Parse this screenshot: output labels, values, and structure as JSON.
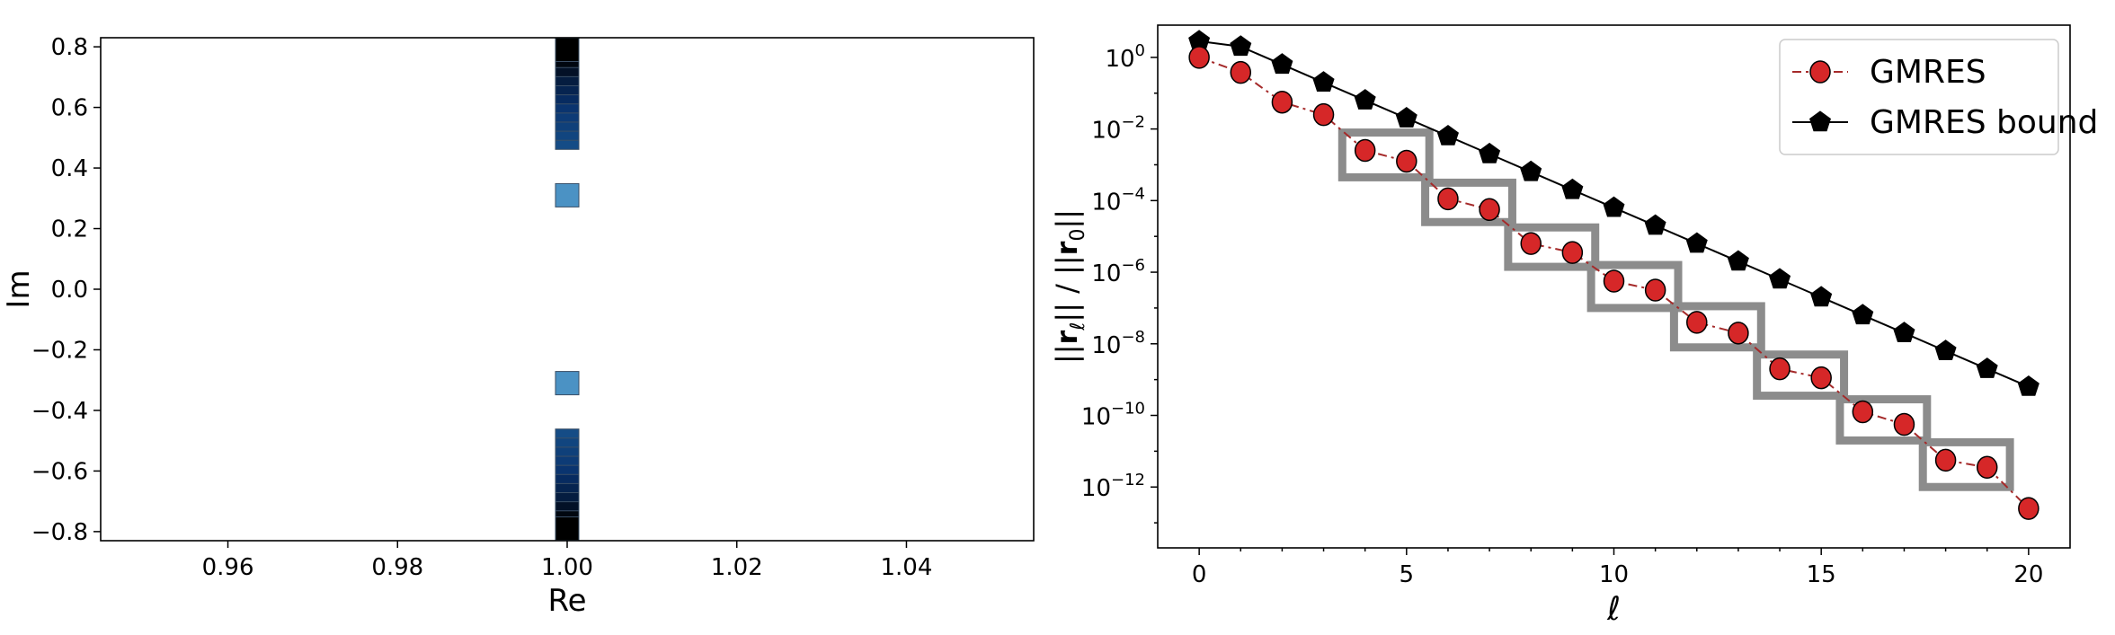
{
  "chart_data": [
    {
      "type": "scatter",
      "xlabel": "Re",
      "ylabel": "Im",
      "xlim": [
        0.945,
        1.055
      ],
      "ylim": [
        -0.83,
        0.83
      ],
      "xticks": [
        0.96,
        0.98,
        1.0,
        1.02,
        1.04
      ],
      "xtick_labels": [
        "0.96",
        "0.98",
        "1.00",
        "1.02",
        "1.04"
      ],
      "yticks": [
        -0.8,
        -0.6,
        -0.4,
        -0.2,
        0.0,
        0.2,
        0.4,
        0.6,
        0.8
      ],
      "ytick_labels": [
        "−0.8",
        "−0.6",
        "−0.4",
        "−0.2",
        "0.0",
        "0.2",
        "0.4",
        "0.6",
        "0.8"
      ],
      "grid": false,
      "marker": "square",
      "colormap": [
        "#a9cce6",
        "#2c7fb8",
        "#08306b",
        "#000000"
      ],
      "points": [
        {
          "re": 1.0,
          "im": 0.31,
          "shade": 0.25
        },
        {
          "re": 1.0,
          "im": 0.5,
          "shade": 0.55
        },
        {
          "re": 1.0,
          "im": 0.53,
          "shade": 0.58
        },
        {
          "re": 1.0,
          "im": 0.56,
          "shade": 0.6
        },
        {
          "re": 1.0,
          "im": 0.59,
          "shade": 0.62
        },
        {
          "re": 1.0,
          "im": 0.62,
          "shade": 0.65
        },
        {
          "re": 1.0,
          "im": 0.65,
          "shade": 0.7
        },
        {
          "re": 1.0,
          "im": 0.68,
          "shade": 0.75
        },
        {
          "re": 1.0,
          "im": 0.71,
          "shade": 0.8
        },
        {
          "re": 1.0,
          "im": 0.74,
          "shade": 0.88
        },
        {
          "re": 1.0,
          "im": 0.77,
          "shade": 0.95
        },
        {
          "re": 1.0,
          "im": 0.79,
          "shade": 1.0
        },
        {
          "re": 1.0,
          "im": -0.31,
          "shade": 0.25
        },
        {
          "re": 1.0,
          "im": -0.5,
          "shade": 0.55
        },
        {
          "re": 1.0,
          "im": -0.53,
          "shade": 0.58
        },
        {
          "re": 1.0,
          "im": -0.56,
          "shade": 0.6
        },
        {
          "re": 1.0,
          "im": -0.59,
          "shade": 0.62
        },
        {
          "re": 1.0,
          "im": -0.62,
          "shade": 0.65
        },
        {
          "re": 1.0,
          "im": -0.65,
          "shade": 0.7
        },
        {
          "re": 1.0,
          "im": -0.68,
          "shade": 0.75
        },
        {
          "re": 1.0,
          "im": -0.71,
          "shade": 0.8
        },
        {
          "re": 1.0,
          "im": -0.74,
          "shade": 0.88
        },
        {
          "re": 1.0,
          "im": -0.77,
          "shade": 0.95
        },
        {
          "re": 1.0,
          "im": -0.79,
          "shade": 1.0
        }
      ]
    },
    {
      "type": "line",
      "scale_y": "log",
      "xlabel": "ℓ",
      "ylabel": "||r_ℓ|| / ||r_0||",
      "xlim": [
        -1,
        21
      ],
      "ylim_exp": [
        -13.7,
        0.9
      ],
      "xticks": [
        0,
        5,
        10,
        15,
        20
      ],
      "xtick_labels": [
        "0",
        "5",
        "10",
        "15",
        "20"
      ],
      "yticks_exp": [
        0,
        -2,
        -4,
        -6,
        -8,
        -10,
        -12
      ],
      "ytick_labels": [
        {
          "base": "10",
          "exp": "0"
        },
        {
          "base": "10",
          "exp": "−2"
        },
        {
          "base": "10",
          "exp": "−4"
        },
        {
          "base": "10",
          "exp": "−6"
        },
        {
          "base": "10",
          "exp": "−8"
        },
        {
          "base": "10",
          "exp": "−10"
        },
        {
          "base": "10",
          "exp": "−12"
        }
      ],
      "grid": false,
      "legend_position": "top-right",
      "series": [
        {
          "name": "GMRES",
          "color": "#d62728",
          "line_color": "#a52a2a",
          "line_style": "dash-dot",
          "marker": "circle",
          "x": [
            0,
            1,
            2,
            3,
            4,
            5,
            6,
            7,
            8,
            9,
            10,
            11,
            12,
            13,
            14,
            15,
            16,
            17,
            18,
            19,
            20
          ],
          "log10_y": [
            0.0,
            -0.42,
            -1.25,
            -1.6,
            -2.6,
            -2.9,
            -3.95,
            -4.25,
            -5.2,
            -5.45,
            -6.25,
            -6.5,
            -7.4,
            -7.7,
            -8.7,
            -8.95,
            -9.9,
            -10.25,
            -11.25,
            -11.45,
            -12.6
          ]
        },
        {
          "name": "GMRES bound",
          "color": "#000000",
          "line_color": "#000000",
          "line_style": "solid",
          "marker": "pentagon",
          "x": [
            0,
            1,
            2,
            3,
            4,
            5,
            6,
            7,
            8,
            9,
            10,
            11,
            12,
            13,
            14,
            15,
            16,
            17,
            18,
            19,
            20
          ],
          "log10_y": [
            0.45,
            0.3,
            -0.2,
            -0.7,
            -1.2,
            -1.7,
            -2.2,
            -2.7,
            -3.2,
            -3.7,
            -4.2,
            -4.7,
            -5.2,
            -5.7,
            -6.2,
            -6.7,
            -7.2,
            -7.7,
            -8.2,
            -8.7,
            -9.2
          ]
        }
      ],
      "highlight_boxes": [
        {
          "x_range": [
            3.45,
            5.55
          ],
          "log10_y_range": [
            -3.35,
            -2.1
          ]
        },
        {
          "x_range": [
            5.45,
            7.55
          ],
          "log10_y_range": [
            -4.6,
            -3.5
          ]
        },
        {
          "x_range": [
            7.45,
            9.55
          ],
          "log10_y_range": [
            -5.85,
            -4.75
          ]
        },
        {
          "x_range": [
            9.45,
            11.55
          ],
          "log10_y_range": [
            -7.0,
            -5.8
          ]
        },
        {
          "x_range": [
            11.45,
            13.55
          ],
          "log10_y_range": [
            -8.1,
            -6.95
          ]
        },
        {
          "x_range": [
            13.45,
            15.55
          ],
          "log10_y_range": [
            -9.45,
            -8.3
          ]
        },
        {
          "x_range": [
            15.45,
            17.55
          ],
          "log10_y_range": [
            -10.7,
            -9.55
          ]
        },
        {
          "x_range": [
            17.45,
            19.55
          ],
          "log10_y_range": [
            -12.0,
            -10.75
          ]
        }
      ],
      "highlight_color": "#8c8c8c"
    }
  ]
}
